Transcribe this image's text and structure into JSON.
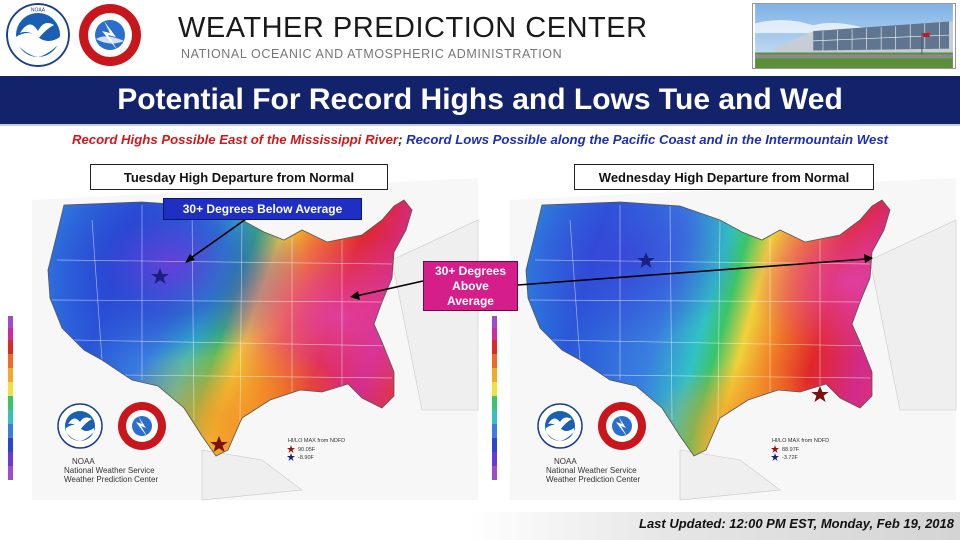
{
  "header": {
    "title": "WEATHER PREDICTION CENTER",
    "subtitle": "NATIONAL OCEANIC AND ATMOSPHERIC ADMINISTRATION",
    "noaa_logo_icon": "noaa-logo-icon",
    "nws_logo_icon": "nws-logo-icon",
    "noaa_logo_text": "NOAA"
  },
  "title_bar": {
    "text": "Potential For Record Highs and Lows Tue and Wed"
  },
  "subtitle": {
    "red_part": "Record Highs Possible East of the Mississippi River",
    "separator": ";",
    "blue_part": " Record Lows Possible along the Pacific Coast and in the Intermountain West"
  },
  "panels": [
    {
      "label": "Tuesday High Departure from Normal",
      "legend_lines": [
        "HI/LO MAX from NDFD",
        "90.05F",
        "-8.90F"
      ],
      "agency_lines": [
        "NOAA",
        "National Weather Service",
        "Weather Prediction Center"
      ]
    },
    {
      "label": "Wednesday High Departure from Normal",
      "legend_lines": [
        "HI/LO MAX from NDFD",
        "88.97F",
        "-3.72F"
      ],
      "agency_lines": [
        "NOAA",
        "National Weather Service",
        "Weather Prediction Center"
      ]
    }
  ],
  "callouts": {
    "below_average": "30+ Degrees Below Average",
    "above_average_lines": [
      "30+ Degrees",
      "Above",
      "Average"
    ]
  },
  "footer": {
    "last_updated": "Last Updated: 12:00 PM EST, Monday, Feb 19, 2018"
  },
  "colors": {
    "title_bar": "#12236b",
    "record_high_red": "#d2171c",
    "record_low_blue": "#1c2fb8",
    "cold_callout": "#1f2fc4",
    "warm_callout": "#d51e8a"
  }
}
